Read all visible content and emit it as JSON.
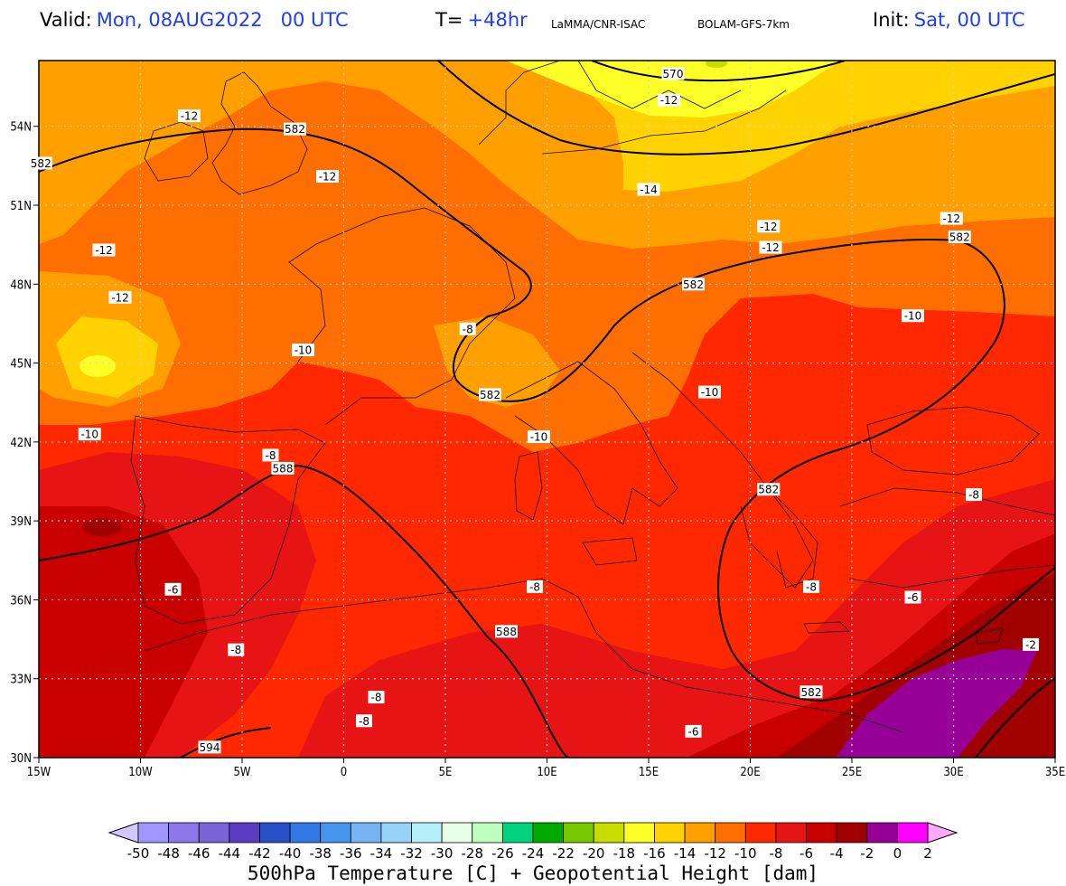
{
  "header": {
    "valid_label": "Valid:",
    "valid_value": "Mon, 08AUG2022   00 UTC",
    "lead_label": "T=",
    "lead_value": "+48hr",
    "source": "LaMMA/CNR-ISAC",
    "model": "BOLAM-GFS-7km",
    "init_label": "Init:",
    "init_value": "Sat, 00 UTC"
  },
  "map": {
    "lon_range": [
      -15,
      35
    ],
    "lat_range": [
      30,
      56.5
    ],
    "lon_ticks": [
      "15W",
      "10W",
      "5W",
      "0",
      "5E",
      "10E",
      "15E",
      "20E",
      "25E",
      "30E",
      "35E"
    ],
    "lat_ticks": [
      "30N",
      "33N",
      "36N",
      "39N",
      "42N",
      "45N",
      "48N",
      "51N",
      "54N"
    ],
    "grid": "dotted",
    "temperature_labels": [
      {
        "text": "-12",
        "lon": -7.6,
        "lat": 54.4
      },
      {
        "text": "-12",
        "lon": -0.8,
        "lat": 52.1
      },
      {
        "text": "-12",
        "lon": -11.8,
        "lat": 49.3
      },
      {
        "text": "-12",
        "lon": -11.0,
        "lat": 47.5
      },
      {
        "text": "-10",
        "lon": -2.0,
        "lat": 45.5
      },
      {
        "text": "-10",
        "lon": -12.5,
        "lat": 42.3
      },
      {
        "text": "-8",
        "lon": -3.6,
        "lat": 41.5
      },
      {
        "text": "-8",
        "lon": 6.1,
        "lat": 46.3
      },
      {
        "text": "-10",
        "lon": 9.6,
        "lat": 42.2
      },
      {
        "text": "-10",
        "lon": 18.0,
        "lat": 43.9
      },
      {
        "text": "-10",
        "lon": 28.0,
        "lat": 46.8
      },
      {
        "text": "-12",
        "lon": 16.0,
        "lat": 55.0
      },
      {
        "text": "-14",
        "lon": 15.0,
        "lat": 51.6
      },
      {
        "text": "-12",
        "lon": 20.9,
        "lat": 50.2
      },
      {
        "text": "-12",
        "lon": 21.0,
        "lat": 49.4
      },
      {
        "text": "-12",
        "lon": 29.9,
        "lat": 50.5
      },
      {
        "text": "-8",
        "lon": 31.0,
        "lat": 40.0
      },
      {
        "text": "-6",
        "lon": -8.4,
        "lat": 36.4
      },
      {
        "text": "-8",
        "lon": 9.4,
        "lat": 36.5
      },
      {
        "text": "-8",
        "lon": 23.0,
        "lat": 36.5
      },
      {
        "text": "-6",
        "lon": 28.0,
        "lat": 36.1
      },
      {
        "text": "-8",
        "lon": -5.3,
        "lat": 34.1
      },
      {
        "text": "-2",
        "lon": 33.8,
        "lat": 34.3
      },
      {
        "text": "-8",
        "lon": 1.6,
        "lat": 32.3
      },
      {
        "text": "-8",
        "lon": 1.0,
        "lat": 31.4
      },
      {
        "text": "-6",
        "lon": 17.2,
        "lat": 31.0
      }
    ],
    "height_labels": [
      {
        "text": "582",
        "lon": -14.9,
        "lat": 52.6
      },
      {
        "text": "582",
        "lon": -2.4,
        "lat": 53.9
      },
      {
        "text": "570",
        "lon": 16.2,
        "lat": 56.0
      },
      {
        "text": "582",
        "lon": 7.2,
        "lat": 43.8
      },
      {
        "text": "582",
        "lon": 17.2,
        "lat": 48.0
      },
      {
        "text": "582",
        "lon": 30.3,
        "lat": 49.8
      },
      {
        "text": "588",
        "lon": -3.0,
        "lat": 41.0
      },
      {
        "text": "582",
        "lon": 20.9,
        "lat": 40.2
      },
      {
        "text": "588",
        "lon": 8.0,
        "lat": 34.8
      },
      {
        "text": "582",
        "lon": 23.0,
        "lat": 32.5
      },
      {
        "text": "594",
        "lon": -6.6,
        "lat": 30.4
      }
    ]
  },
  "colorbar": {
    "labels": [
      "-50",
      "-48",
      "-46",
      "-44",
      "-42",
      "-40",
      "-38",
      "-36",
      "-34",
      "-32",
      "-30",
      "-28",
      "-26",
      "-24",
      "-22",
      "-20",
      "-18",
      "-16",
      "-14",
      "-12",
      "-10",
      "-8",
      "-6",
      "-4",
      "-2",
      "0",
      "2"
    ],
    "colors": [
      "#a096ff",
      "#8c78eb",
      "#7864d7",
      "#5a3cc3",
      "#2850c8",
      "#3278e6",
      "#4696f0",
      "#78b4f5",
      "#96d2fa",
      "#b4f0fa",
      "#e6ffe6",
      "#beffbe",
      "#00d27d",
      "#00aa00",
      "#78c800",
      "#c8dc00",
      "#ffff28",
      "#ffd200",
      "#ffa000",
      "#ff6e00",
      "#ff2800",
      "#e61414",
      "#c80000",
      "#a00000",
      "#960096",
      "#ff00ff"
    ],
    "low_color": "#d2c8ff",
    "high_color": "#ffaaff",
    "title": "500hPa Temperature [C] + Geopotential Height [dam]"
  }
}
